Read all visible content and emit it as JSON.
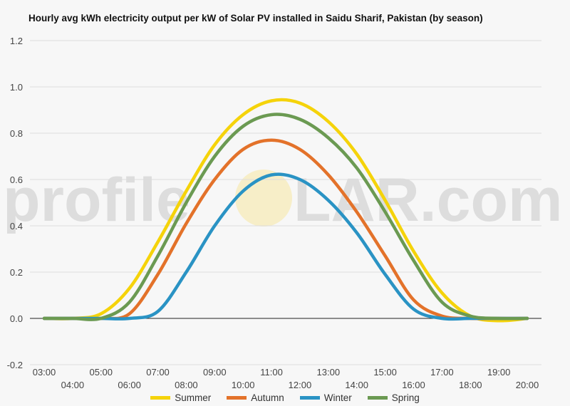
{
  "chart_data": {
    "type": "line",
    "title": "Hourly avg kWh electricity output per kW of Solar PV installed in Saidu Sharif, Pakistan (by season)",
    "xlabel": "",
    "ylabel": "",
    "ylim": [
      -0.2,
      1.2
    ],
    "yticks": [
      "-0.2",
      "0.0",
      "0.2",
      "0.4",
      "0.6",
      "0.8",
      "1.0",
      "1.2"
    ],
    "x": [
      "03:00",
      "04:00",
      "05:00",
      "06:00",
      "07:00",
      "08:00",
      "09:00",
      "10:00",
      "11:00",
      "12:00",
      "13:00",
      "14:00",
      "15:00",
      "16:00",
      "17:00",
      "18:00",
      "19:00",
      "20:00"
    ],
    "grid": true,
    "legend_position": "bottom",
    "series": [
      {
        "name": "Summer",
        "color": "#f5d30a",
        "values": [
          0,
          0,
          0.02,
          0.13,
          0.33,
          0.55,
          0.75,
          0.88,
          0.94,
          0.93,
          0.85,
          0.71,
          0.51,
          0.29,
          0.11,
          0.01,
          -0.01,
          0
        ]
      },
      {
        "name": "Autumn",
        "color": "#e3722a",
        "values": [
          0,
          0,
          0,
          0.02,
          0.19,
          0.41,
          0.6,
          0.73,
          0.77,
          0.73,
          0.62,
          0.46,
          0.27,
          0.08,
          0.01,
          0,
          0,
          0
        ]
      },
      {
        "name": "Winter",
        "color": "#2a93c4",
        "values": [
          0,
          0,
          0,
          0,
          0.03,
          0.2,
          0.4,
          0.55,
          0.62,
          0.6,
          0.51,
          0.37,
          0.19,
          0.04,
          0,
          0,
          0,
          0
        ]
      },
      {
        "name": "Spring",
        "color": "#6b9a52",
        "values": [
          0,
          0,
          0,
          0.07,
          0.27,
          0.5,
          0.7,
          0.83,
          0.88,
          0.86,
          0.78,
          0.65,
          0.46,
          0.25,
          0.07,
          0.01,
          0,
          0
        ]
      }
    ]
  },
  "watermark": {
    "text_left": "profile",
    "text_right": "LAR.com"
  }
}
